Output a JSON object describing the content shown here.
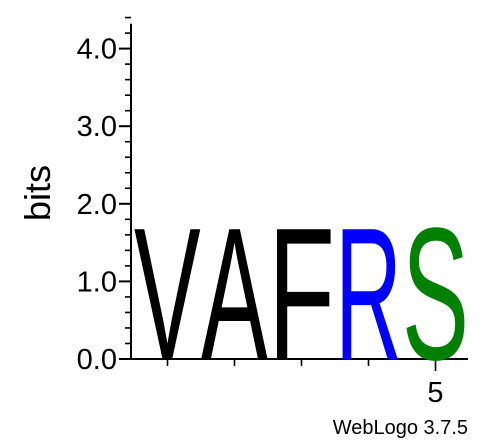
{
  "chart_data": {
    "type": "sequence-logo",
    "ylabel": "bits",
    "ylim": [
      0,
      4.32
    ],
    "y_major_ticks": [
      0,
      1,
      2,
      3,
      4
    ],
    "y_tick_labels": [
      "0.0",
      "1.0",
      "2.0",
      "3.0",
      "4.0"
    ],
    "y_minor_step": 0.2,
    "positions": [
      1,
      2,
      3,
      4,
      5
    ],
    "x_tick_labels": [
      {
        "position": 5,
        "label": "5"
      }
    ],
    "columns": [
      {
        "position": 1,
        "letters": [
          {
            "letter": "V",
            "bits": 1.75,
            "color": "#000000"
          }
        ]
      },
      {
        "position": 2,
        "letters": [
          {
            "letter": "A",
            "bits": 1.75,
            "color": "#000000"
          }
        ]
      },
      {
        "position": 3,
        "letters": [
          {
            "letter": "F",
            "bits": 1.75,
            "color": "#000000"
          }
        ]
      },
      {
        "position": 4,
        "letters": [
          {
            "letter": "R",
            "bits": 1.75,
            "color": "#0000ff"
          }
        ]
      },
      {
        "position": 5,
        "letters": [
          {
            "letter": "S",
            "bits": 1.75,
            "color": "#008000"
          }
        ]
      }
    ],
    "credit": "WebLogo 3.7.5"
  }
}
